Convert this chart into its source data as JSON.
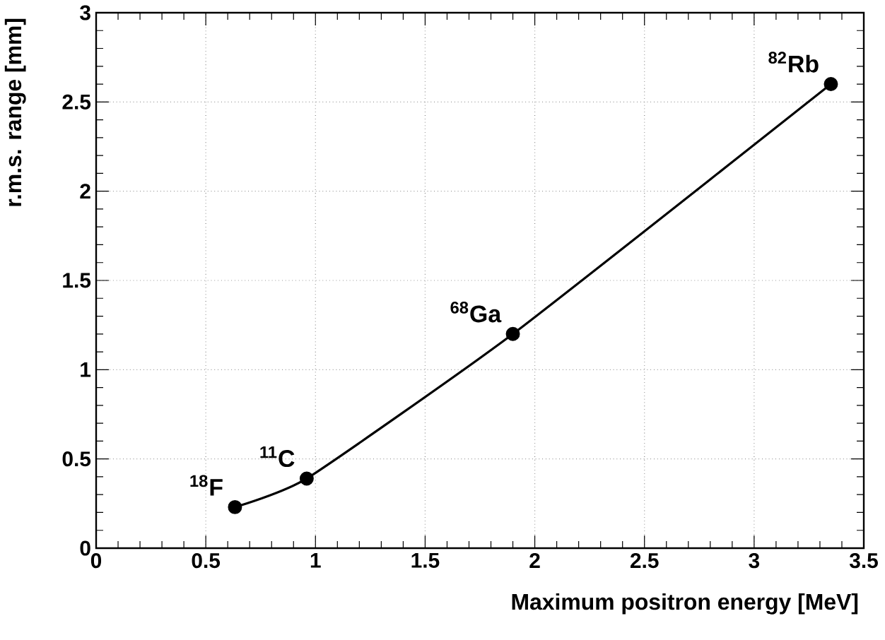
{
  "chart_data": {
    "type": "line",
    "xlabel": "Maximum positron energy [MeV]",
    "ylabel": "r.m.s. range [mm]",
    "x": [
      0.633,
      0.96,
      1.9,
      3.35
    ],
    "series": [
      {
        "color": "#000000",
        "values": [
          0.23,
          0.39,
          1.2,
          2.6
        ]
      }
    ],
    "xlim": [
      0,
      3.5
    ],
    "ylim": [
      0,
      3
    ],
    "xticks": [
      0,
      0.5,
      1,
      1.5,
      2,
      2.5,
      3,
      3.5
    ],
    "yticks": [
      0,
      0.5,
      1,
      1.5,
      2,
      2.5,
      3
    ],
    "grid": true,
    "marker": "circle",
    "line_style": "solid",
    "annotations": [
      {
        "text": "$^{18}$F",
        "x": 0.633,
        "y": 0.23
      },
      {
        "text": "$^{11}$C",
        "x": 0.96,
        "y": 0.39
      },
      {
        "text": "$^{68}$Ga",
        "x": 1.9,
        "y": 1.2
      },
      {
        "text": "$^{82}$Rb",
        "x": 3.35,
        "y": 2.6
      }
    ]
  }
}
